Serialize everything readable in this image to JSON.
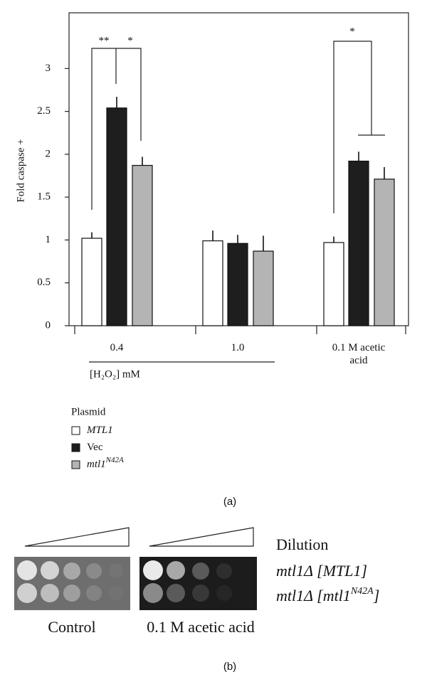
{
  "chart_data": {
    "type": "bar",
    "ylabel": "Fold caspase +",
    "categories": [
      "0.4",
      "1.0",
      "0.1 M acetic acid"
    ],
    "group_label": "[H₂O₂] mM",
    "series": [
      {
        "name": "MTL1",
        "color": "#ffffff",
        "values": [
          1.02,
          0.99,
          0.97
        ],
        "errors": [
          0.07,
          0.12,
          0.07
        ]
      },
      {
        "name": "Vec",
        "color": "#1e1e1e",
        "values": [
          2.54,
          0.96,
          1.92
        ],
        "errors": [
          0.13,
          0.1,
          0.11
        ]
      },
      {
        "name": "mtl1",
        "name_superscript": "N42A",
        "color": "#b4b4b4",
        "values": [
          1.87,
          0.87,
          1.71
        ],
        "errors": [
          0.1,
          0.18,
          0.14
        ]
      }
    ],
    "ylim": [
      0,
      3.65
    ],
    "yticks": [
      0,
      0.5,
      1.0,
      1.5,
      2.0,
      2.5,
      3.0
    ],
    "legend_title": "Plasmid",
    "annotations": [
      "**",
      "*",
      "*"
    ],
    "panel_label": "(a)"
  },
  "panel_b": {
    "dilution": "Dilution",
    "strain_1": "mtl1Δ [MTL1]",
    "strain_2_prefix": "mtl1Δ [mtl1",
    "strain_2_superscript": "N42A",
    "strain_2_suffix": "]",
    "conditions": [
      "Control",
      "0.1 M acetic acid"
    ],
    "panel_label": "(b)"
  }
}
